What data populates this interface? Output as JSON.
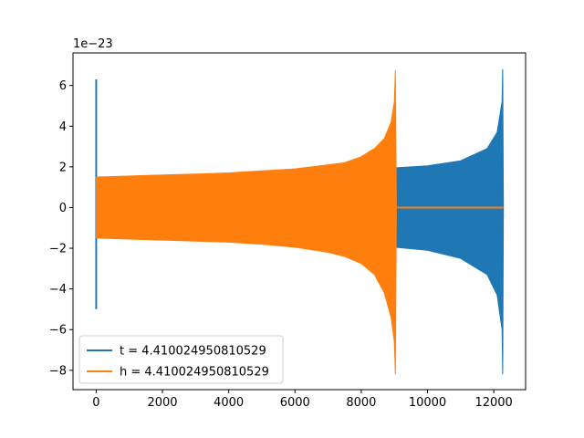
{
  "chart_data": {
    "type": "line",
    "title": "",
    "xlabel": "",
    "ylabel": "",
    "y_offset_label": "1e−23",
    "xlim": [
      -700,
      12960
    ],
    "ylim": [
      -8.95,
      7.6
    ],
    "x_ticks": [
      0,
      2000,
      4000,
      6000,
      8000,
      10000,
      12000
    ],
    "x_tick_labels": [
      "0",
      "2000",
      "4000",
      "6000",
      "8000",
      "10000",
      "12000"
    ],
    "y_ticks": [
      -8,
      -6,
      -4,
      -2,
      0,
      2,
      4,
      6
    ],
    "y_tick_labels": [
      "−8",
      "−6",
      "−4",
      "−2",
      "0",
      "2",
      "4",
      "6"
    ],
    "grid": false,
    "legend_position": "lower-left",
    "series": [
      {
        "name": "t = 4.410024950810529",
        "color": "#1f77b4",
        "spike": {
          "x": 0,
          "max": 6.3,
          "min": -5.0
        },
        "envelope": {
          "x": [
            0,
            3000,
            6000,
            8000,
            9000,
            10000,
            11000,
            11800,
            12100,
            12250,
            12270,
            12290
          ],
          "upper": [
            1.45,
            1.55,
            1.7,
            1.85,
            1.95,
            2.05,
            2.3,
            2.9,
            3.7,
            5.2,
            6.8,
            0
          ],
          "lower": [
            -1.45,
            -1.55,
            -1.7,
            -1.85,
            -1.95,
            -2.1,
            -2.5,
            -3.3,
            -4.3,
            -6.0,
            -8.2,
            0
          ]
        }
      },
      {
        "name": "h = 4.410024950810529",
        "color": "#ff7f0e",
        "envelope": {
          "x": [
            0,
            1000,
            2000,
            3000,
            4000,
            5000,
            6000,
            7000,
            7500,
            8000,
            8400,
            8700,
            8900,
            9000,
            9030,
            9060
          ],
          "upper": [
            1.5,
            1.55,
            1.6,
            1.65,
            1.7,
            1.8,
            1.9,
            2.1,
            2.2,
            2.5,
            2.9,
            3.4,
            4.2,
            5.2,
            6.75,
            0
          ],
          "lower": [
            -1.5,
            -1.55,
            -1.6,
            -1.65,
            -1.7,
            -1.8,
            -1.95,
            -2.2,
            -2.4,
            -2.75,
            -3.3,
            -4.2,
            -5.4,
            -6.6,
            -8.2,
            0
          ]
        },
        "flat_after": {
          "from": 9060,
          "to": 12290,
          "value": 0
        }
      }
    ]
  }
}
